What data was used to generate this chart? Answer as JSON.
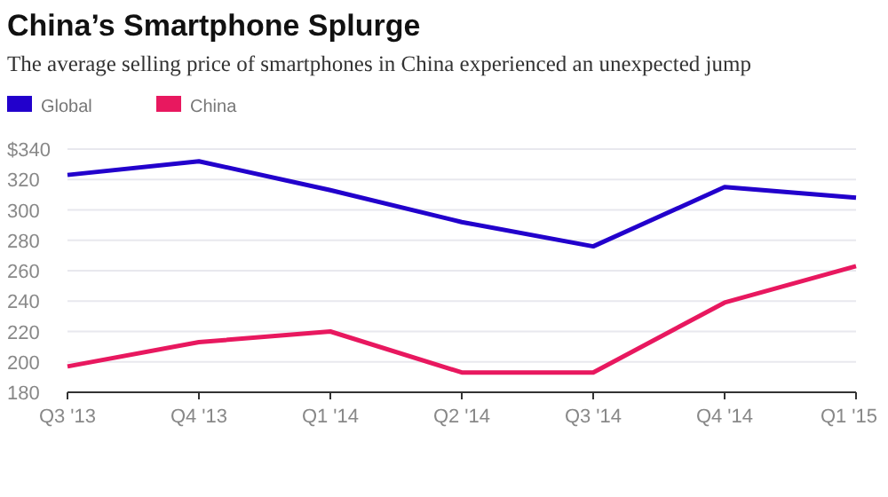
{
  "chart_data": {
    "type": "line",
    "title": "China’s Smartphone Splurge",
    "subtitle": "The average selling price of smartphones in China experienced an unexpected jump",
    "categories": [
      "Q3 '13",
      "Q4 '13",
      "Q1 '14",
      "Q2 '14",
      "Q3 '14",
      "Q4 '14",
      "Q1 '15"
    ],
    "series": [
      {
        "name": "Global",
        "color": "#2200cc",
        "values": [
          323,
          332,
          313,
          292,
          276,
          315,
          308
        ]
      },
      {
        "name": "China",
        "color": "#e8185f",
        "values": [
          197,
          213,
          220,
          193,
          193,
          239,
          263
        ]
      }
    ],
    "ylim": [
      180,
      340
    ],
    "yticks": [
      180,
      200,
      220,
      240,
      260,
      280,
      300,
      320,
      {
        "value": 340,
        "label": "$340"
      }
    ],
    "grid": "y",
    "legend": "top left",
    "marker": "none",
    "line_style": "solid"
  }
}
